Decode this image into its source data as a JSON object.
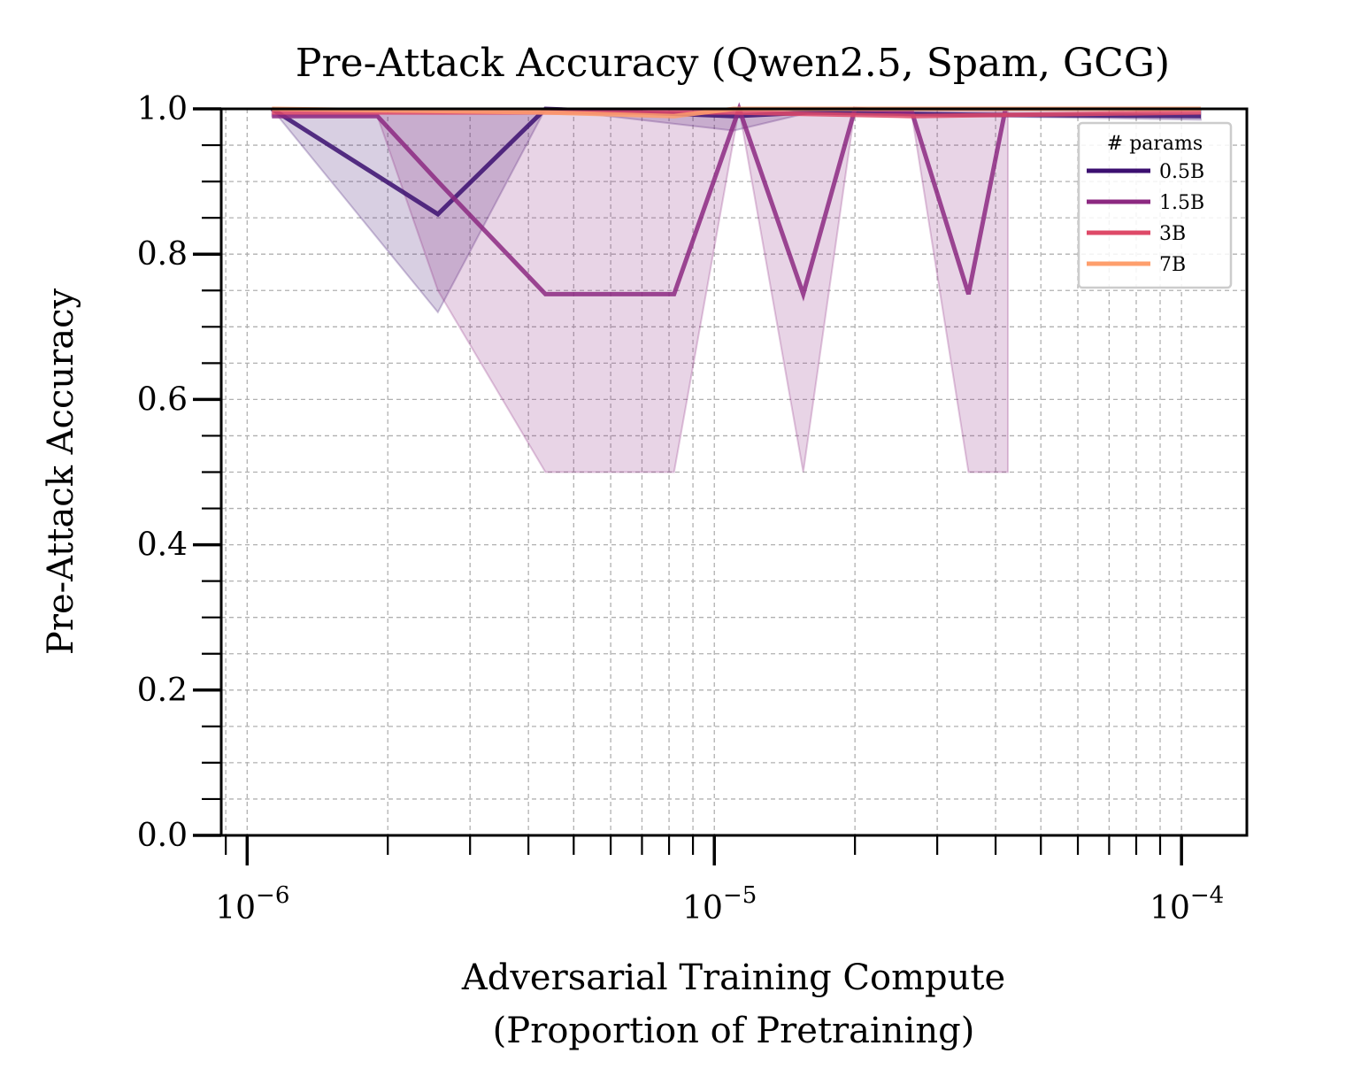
{
  "chart_data": {
    "type": "line",
    "title": "Pre-Attack Accuracy (Qwen2.5, Spam, GCG)",
    "xlabel_line1": "Adversarial Training Compute",
    "xlabel_line2": "(Proportion of Pretraining)",
    "ylabel": "Pre-Attack Accuracy",
    "xscale": "log",
    "xlim": [
      8.8e-07,
      0.000138
    ],
    "ylim": [
      0,
      1
    ],
    "x_ticks": [
      {
        "value": 1e-06,
        "base": "10",
        "exp": "−6"
      },
      {
        "value": 1e-05,
        "base": "10",
        "exp": "−5"
      },
      {
        "value": 0.0001,
        "base": "10",
        "exp": "−4"
      }
    ],
    "y_ticks": [
      {
        "value": 0.0,
        "label": "0.0"
      },
      {
        "value": 0.2,
        "label": "0.2"
      },
      {
        "value": 0.4,
        "label": "0.4"
      },
      {
        "value": 0.6,
        "label": "0.6"
      },
      {
        "value": 0.8,
        "label": "0.8"
      },
      {
        "value": 1.0,
        "label": "1.0"
      }
    ],
    "grid": true,
    "legend": {
      "title": "# params",
      "placement": "top-right"
    },
    "series": [
      {
        "name": "0.5B",
        "color": "#3b0f70",
        "x": [
          1.13e-06,
          2.56e-06,
          4.35e-06,
          1.1e-05,
          1.6e-05,
          3.5e-05,
          0.00011
        ],
        "y": [
          1.0,
          0.855,
          1.0,
          0.99,
          0.995,
          0.992,
          0.99
        ],
        "band_x": [
          1.13e-06,
          2.56e-06,
          4.35e-06,
          1.1e-05,
          1.6e-05,
          3.5e-05,
          0.00011
        ],
        "band_lower": [
          1.0,
          0.72,
          1.0,
          0.97,
          0.995,
          0.99,
          0.985
        ],
        "band_upper": [
          1.0,
          1.0,
          1.0,
          1.0,
          1.0,
          1.0,
          1.0
        ]
      },
      {
        "name": "1.5B",
        "color": "#8c2981",
        "x": [
          1.13e-06,
          1.9e-06,
          2.56e-06,
          4.35e-06,
          8.2e-06,
          1.13e-05,
          1.55e-05,
          2e-05,
          2.65e-05,
          3.5e-05,
          4.2e-05
        ],
        "y": [
          0.99,
          0.99,
          0.9,
          0.745,
          0.745,
          1.0,
          0.745,
          1.0,
          0.995,
          0.745,
          1.0
        ],
        "band_x": [
          1.13e-06,
          1.9e-06,
          2.56e-06,
          4.35e-06,
          8.2e-06,
          1.13e-05,
          1.55e-05,
          2e-05,
          2.65e-05,
          3.5e-05,
          4.2e-05,
          4.25e-05
        ],
        "band_lower": [
          0.99,
          0.99,
          0.75,
          0.5,
          0.5,
          1.0,
          0.5,
          1.0,
          0.99,
          0.5,
          0.5,
          0.5
        ],
        "band_upper": [
          1.0,
          1.0,
          1.0,
          1.0,
          1.0,
          1.0,
          1.0,
          1.0,
          1.0,
          1.0,
          1.0,
          1.0
        ]
      },
      {
        "name": "3B",
        "color": "#de4968",
        "x": [
          1.13e-06,
          4.35e-06,
          1.1e-05,
          2.65e-05,
          0.00011
        ],
        "y": [
          0.995,
          0.995,
          0.995,
          0.99,
          0.995
        ],
        "band_x": [],
        "band_lower": [],
        "band_upper": []
      },
      {
        "name": "7B",
        "color": "#fe9f6d",
        "x": [
          1.13e-06,
          4.35e-06,
          8.2e-06,
          1.1e-05,
          0.00011
        ],
        "y": [
          1.0,
          0.995,
          0.99,
          1.0,
          1.0
        ],
        "band_x": [],
        "band_lower": [],
        "band_upper": []
      }
    ]
  }
}
